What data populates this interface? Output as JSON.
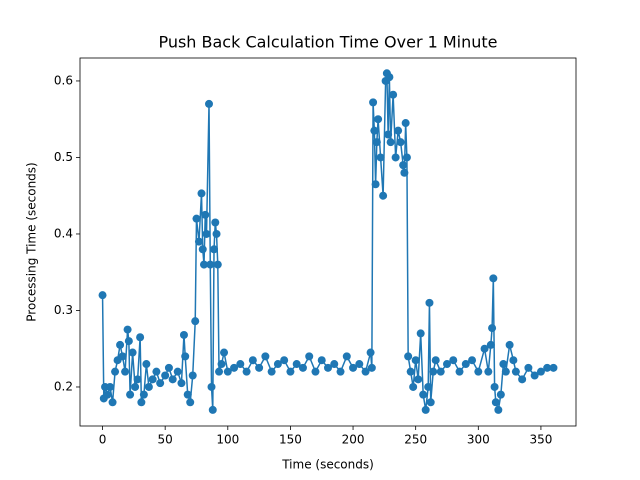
{
  "chart_data": {
    "type": "line",
    "title": "Push Back Calculation Time Over 1 Minute",
    "x_label": "Time (seconds)",
    "y_label": "Processing Time (seconds)",
    "color": "#1f77b4",
    "x": [
      0,
      1,
      2,
      4,
      6,
      8,
      10,
      12,
      14,
      16,
      18,
      20,
      21,
      22,
      24,
      26,
      28,
      30,
      31,
      33,
      35,
      37,
      40,
      43,
      46,
      50,
      53,
      56,
      60,
      63,
      65,
      66,
      68,
      70,
      72,
      74,
      75,
      77,
      79,
      80,
      81,
      82,
      83,
      85,
      86,
      87,
      88,
      89,
      90,
      91,
      92,
      93,
      95,
      97,
      100,
      105,
      110,
      115,
      120,
      125,
      130,
      135,
      140,
      145,
      150,
      155,
      160,
      165,
      170,
      175,
      180,
      185,
      190,
      195,
      200,
      205,
      210,
      214,
      215,
      216,
      217,
      218,
      219,
      220,
      222,
      224,
      226,
      227,
      228,
      229,
      230,
      232,
      234,
      236,
      238,
      240,
      241,
      242,
      243,
      244,
      246,
      248,
      250,
      252,
      254,
      256,
      258,
      260,
      261,
      262,
      264,
      266,
      270,
      275,
      280,
      285,
      290,
      295,
      300,
      305,
      308,
      310,
      311,
      312,
      313,
      314,
      316,
      318,
      320,
      322,
      325,
      328,
      330,
      335,
      340,
      345,
      350,
      355,
      360
    ],
    "values": [
      0.32,
      0.185,
      0.2,
      0.19,
      0.2,
      0.18,
      0.22,
      0.235,
      0.255,
      0.24,
      0.22,
      0.275,
      0.26,
      0.19,
      0.245,
      0.2,
      0.21,
      0.265,
      0.18,
      0.19,
      0.23,
      0.2,
      0.21,
      0.22,
      0.205,
      0.215,
      0.225,
      0.21,
      0.22,
      0.205,
      0.268,
      0.24,
      0.19,
      0.18,
      0.215,
      0.286,
      0.42,
      0.39,
      0.453,
      0.38,
      0.36,
      0.425,
      0.4,
      0.57,
      0.36,
      0.2,
      0.17,
      0.38,
      0.415,
      0.4,
      0.36,
      0.22,
      0.23,
      0.245,
      0.22,
      0.225,
      0.23,
      0.22,
      0.235,
      0.225,
      0.24,
      0.22,
      0.23,
      0.235,
      0.22,
      0.23,
      0.225,
      0.24,
      0.22,
      0.235,
      0.225,
      0.23,
      0.22,
      0.24,
      0.225,
      0.23,
      0.22,
      0.245,
      0.225,
      0.572,
      0.535,
      0.465,
      0.52,
      0.55,
      0.5,
      0.45,
      0.6,
      0.61,
      0.53,
      0.605,
      0.52,
      0.582,
      0.5,
      0.535,
      0.52,
      0.49,
      0.48,
      0.545,
      0.5,
      0.24,
      0.22,
      0.2,
      0.235,
      0.21,
      0.27,
      0.19,
      0.17,
      0.2,
      0.31,
      0.18,
      0.22,
      0.235,
      0.22,
      0.23,
      0.235,
      0.22,
      0.23,
      0.235,
      0.22,
      0.25,
      0.22,
      0.255,
      0.277,
      0.342,
      0.2,
      0.18,
      0.17,
      0.19,
      0.23,
      0.22,
      0.255,
      0.235,
      0.22,
      0.21,
      0.225,
      0.215,
      0.22,
      0.225,
      0.225
    ],
    "xlim": [
      -18,
      378
    ],
    "ylim": [
      0.149,
      0.63
    ],
    "xticks": [
      0,
      50,
      100,
      150,
      200,
      250,
      300,
      350
    ],
    "yticks": [
      0.2,
      0.3,
      0.4,
      0.5,
      0.6
    ]
  }
}
